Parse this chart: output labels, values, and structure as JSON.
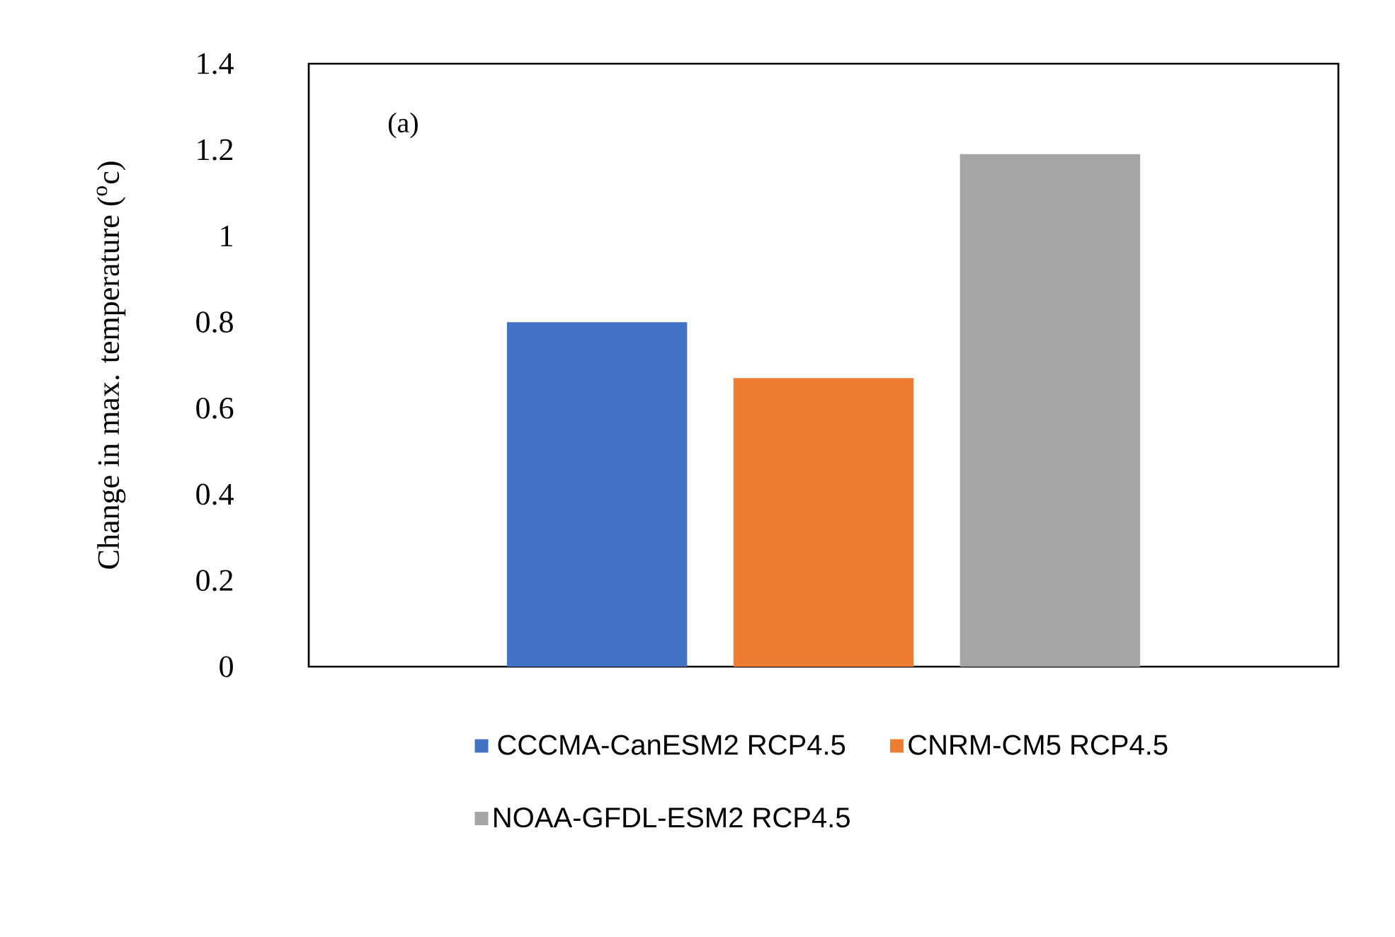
{
  "chart_data": {
    "type": "bar",
    "categories": [
      null
    ],
    "ylabel": "Change in max. temperature ($^{o}$c)",
    "series": [
      {
        "name": "CCCMA-CanESM2 RCP4.5",
        "color": "#4472c4",
        "values": [
          0.8
        ]
      },
      {
        "name": "CNRM-CM5 RCP4.5",
        "color": "#ed7d31",
        "values": [
          0.67
        ]
      },
      {
        "name": "NOAA-GFDL-ESM2 RCP4.5",
        "color": "#a5a5a5",
        "values": [
          1.19
        ]
      }
    ],
    "ylim": [
      0,
      1.4
    ],
    "yticks": [
      0,
      0.2,
      0.4,
      0.6,
      0.8,
      1,
      1.2,
      1.4
    ],
    "annotations": [
      "(a)"
    ],
    "legend": "bottom",
    "grid": false
  }
}
